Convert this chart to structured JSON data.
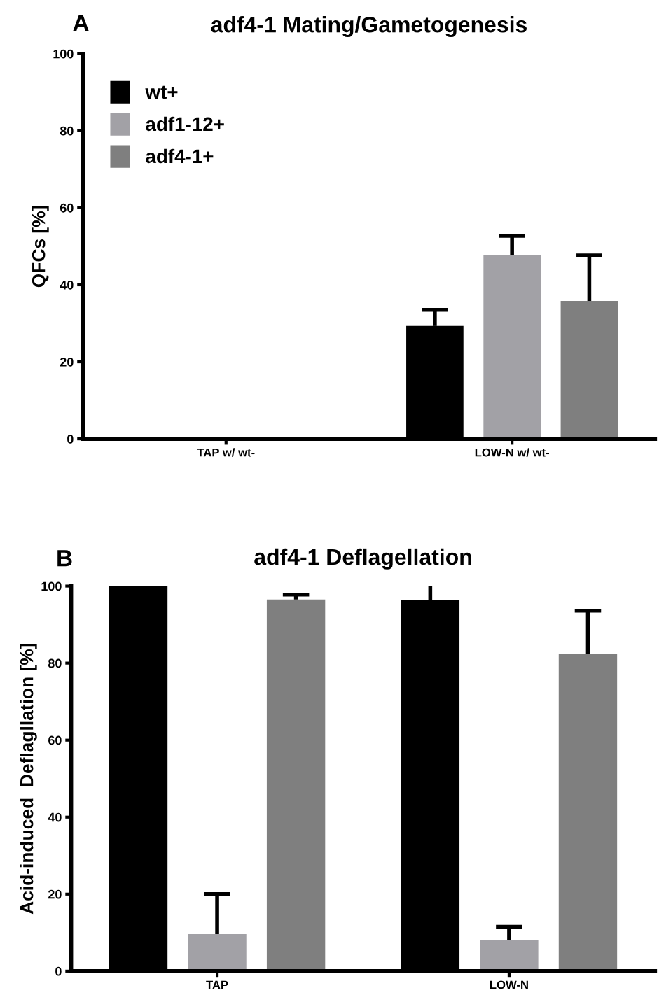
{
  "chart_data": [
    {
      "type": "bar",
      "title": "adf4-1 Mating/Gametogenesis",
      "ylabel": "QFCs [%]",
      "annotations": [
        "A"
      ],
      "categories": [
        "TAP w/ wt-",
        "LOW-N w/ wt-"
      ],
      "ylim": [
        0,
        100
      ],
      "yticks": [
        0,
        20,
        40,
        60,
        80,
        100
      ],
      "grid": false,
      "legend": "top left",
      "series": [
        {
          "name": "wt+",
          "color": "#000000",
          "values": [
            0,
            29.3
          ],
          "errors": [
            null,
            [
              29.3,
              33.5
            ]
          ]
        },
        {
          "name": "adf1-12+",
          "color": "#a2a1a6",
          "values": [
            0,
            47.8
          ],
          "errors": [
            null,
            [
              47.8,
              52.7
            ]
          ]
        },
        {
          "name": "adf4-1+",
          "color": "#7f7f7f",
          "values": [
            0,
            35.8
          ],
          "errors": [
            null,
            [
              35.8,
              47.6
            ]
          ]
        }
      ]
    },
    {
      "type": "bar",
      "title": "adf4-1 Deflagellation",
      "ylabel": "Acid-induced  Deflagllation [%]",
      "annotations": [
        "B"
      ],
      "categories": [
        "TAP",
        "LOW-N"
      ],
      "ylim": [
        0,
        100
      ],
      "yticks": [
        0,
        20,
        40,
        60,
        80,
        100
      ],
      "grid": false,
      "legend": false,
      "series": [
        {
          "color": "#000000",
          "values": [
            100,
            96.4
          ],
          "errors": [
            null,
            [
              96.4,
              100
            ]
          ]
        },
        {
          "color": "#a2a1a6",
          "values": [
            9.6,
            8
          ],
          "errors": [
            [
              9.6,
              20
            ],
            [
              8,
              11.5
            ]
          ]
        },
        {
          "color": "#7f7f7f",
          "values": [
            96.5,
            82.4
          ],
          "errors": [
            [
              96.5,
              97.8
            ],
            [
              82.4,
              93.6
            ]
          ]
        }
      ]
    }
  ]
}
